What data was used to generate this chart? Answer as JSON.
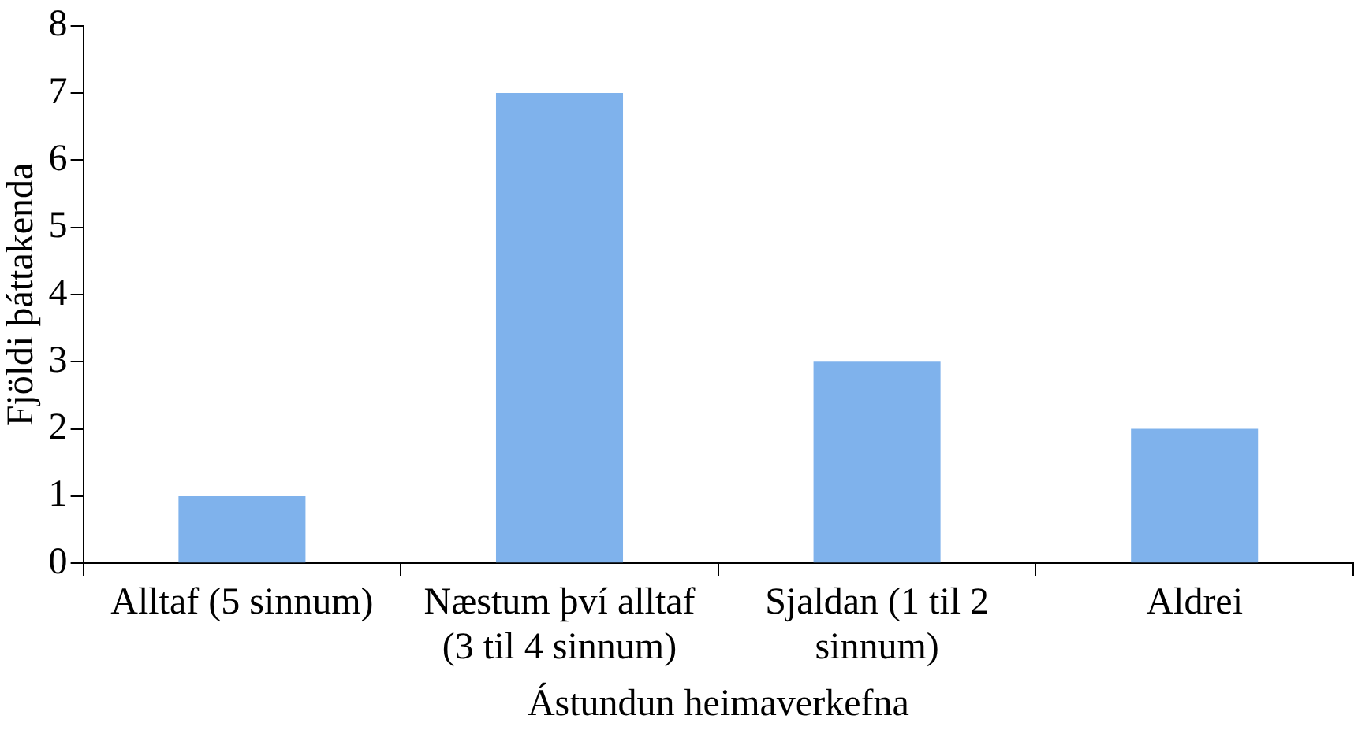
{
  "chart_data": {
    "type": "bar",
    "xlabel": "Ástundun heimaverkefna",
    "ylabel": "Fjöldi þáttakenda",
    "categories": [
      "Alltaf (5 sinnum)",
      "Næstum því alltaf (3 til 4 sinnum)",
      "Sjaldan (1 til 2 sinnum)",
      "Aldrei"
    ],
    "values": [
      1,
      7,
      3,
      2
    ],
    "color": "#7fb2ec",
    "ylim": [
      0,
      8
    ],
    "yticks": [
      0,
      1,
      2,
      3,
      4,
      5,
      6,
      7,
      8
    ],
    "grid": false,
    "legend": false
  }
}
